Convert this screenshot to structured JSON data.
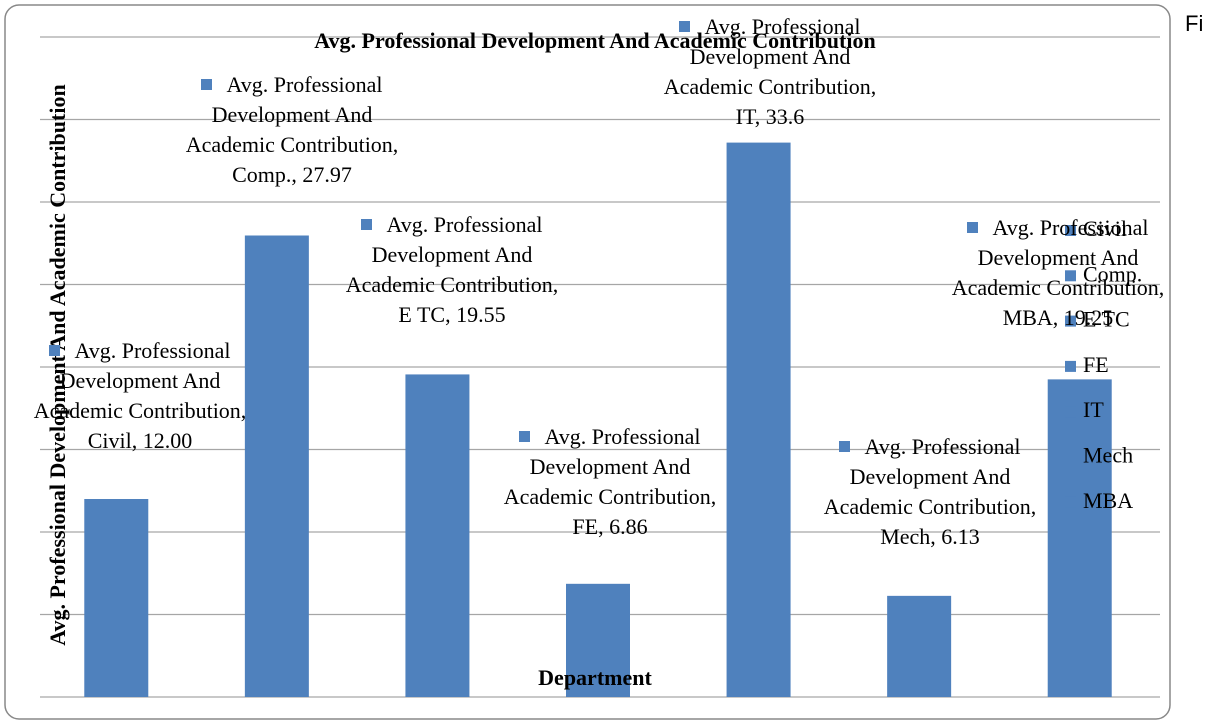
{
  "chart_data": {
    "type": "bar",
    "title": "Avg. Professional Development And  Academic Contribution",
    "x_label": "Department",
    "y_label": "Avg. Professional Development And Academic Contribution",
    "corner_text": "Fi",
    "categories": [
      "Civil",
      "Comp.",
      "E TC",
      "FE",
      "IT",
      "Mech",
      "MBA"
    ],
    "series": [
      {
        "name": "Avg. Professional Development And Academic Contribution",
        "color": "#4f81bd",
        "values": [
          12.0,
          27.97,
          19.55,
          6.86,
          33.6,
          6.13,
          19.25
        ],
        "value_labels": [
          "Avg. Professional Development And Academic Contribution, Civil, 12.00",
          "Avg. Professional Development And Academic Contribution, Comp., 27.97",
          "Avg. Professional Development And Academic Contribution, E TC, 19.55",
          "Avg. Professional Development And Academic Contribution, FE, 6.86",
          "Avg. Professional Development And Academic Contribution, IT, 33.6",
          "Avg. Professional Development And Academic Contribution, Mech, 6.13",
          "Avg. Professional Development And Academic Contribution, MBA, 19.25"
        ]
      }
    ],
    "ylim": [
      0,
      40
    ],
    "yticks": [
      0,
      5,
      10,
      15,
      20,
      25,
      30,
      35,
      40
    ],
    "grid": true,
    "legend": "right"
  }
}
